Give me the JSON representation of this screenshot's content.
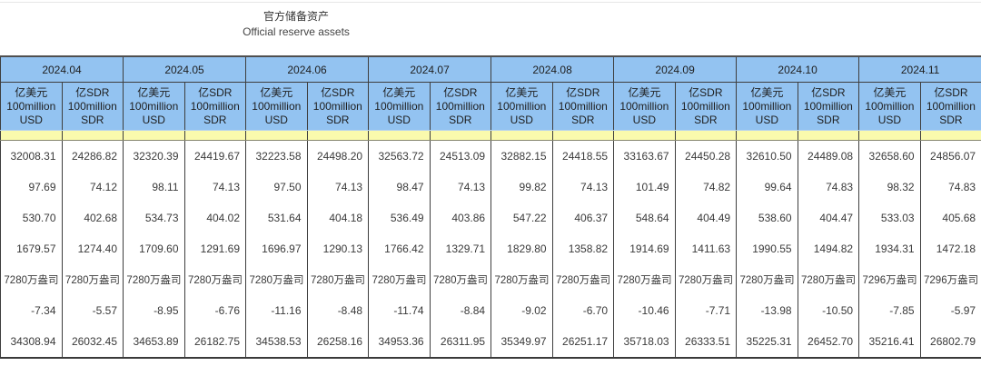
{
  "page": {
    "title_zh": "官方储备资产",
    "title_en": "Official reserve assets"
  },
  "colors": {
    "header_blue": "#93c3f1",
    "spacer_yellow": "#fafaad",
    "grid_line": "#3e3e3e"
  },
  "table": {
    "months": [
      "2024.04",
      "2024.05",
      "2024.06",
      "2024.07",
      "2024.08",
      "2024.09",
      "2024.10",
      "2024.11"
    ],
    "units": [
      {
        "line1": "亿美元",
        "line2": "100million",
        "line3": "USD"
      },
      {
        "line1": "亿SDR",
        "line2": "100million",
        "line3": "SDR"
      }
    ],
    "rows": [
      {
        "values": [
          "32008.31",
          "24286.82",
          "32320.39",
          "24419.67",
          "32223.58",
          "24498.20",
          "32563.72",
          "24513.09",
          "32882.15",
          "24418.55",
          "33163.67",
          "24450.28",
          "32610.50",
          "24489.08",
          "32658.60",
          "24856.07"
        ]
      },
      {
        "values": [
          "97.69",
          "74.12",
          "98.11",
          "74.13",
          "97.50",
          "74.13",
          "98.47",
          "74.13",
          "99.82",
          "74.13",
          "101.49",
          "74.82",
          "99.64",
          "74.83",
          "98.32",
          "74.83"
        ]
      },
      {
        "values": [
          "530.70",
          "402.68",
          "534.73",
          "404.02",
          "531.64",
          "404.18",
          "536.49",
          "403.86",
          "547.22",
          "406.37",
          "548.64",
          "404.49",
          "538.60",
          "404.47",
          "533.03",
          "405.68"
        ]
      },
      {
        "values": [
          "1679.57",
          "1274.40",
          "1709.60",
          "1291.69",
          "1696.97",
          "1290.13",
          "1766.42",
          "1329.71",
          "1829.80",
          "1358.82",
          "1914.69",
          "1411.63",
          "1990.55",
          "1494.82",
          "1934.31",
          "1472.18"
        ]
      },
      {
        "values": [
          "7280万盎司",
          "7280万盎司",
          "7280万盎司",
          "7280万盎司",
          "7280万盎司",
          "7280万盎司",
          "7280万盎司",
          "7280万盎司",
          "7280万盎司",
          "7280万盎司",
          "7280万盎司",
          "7280万盎司",
          "7280万盎司",
          "7280万盎司",
          "7296万盎司",
          "7296万盎司"
        ]
      },
      {
        "values": [
          "-7.34",
          "-5.57",
          "-8.95",
          "-6.76",
          "-11.16",
          "-8.48",
          "-11.74",
          "-8.84",
          "-9.02",
          "-6.70",
          "-10.46",
          "-7.71",
          "-13.98",
          "-10.50",
          "-7.85",
          "-5.97"
        ]
      },
      {
        "values": [
          "34308.94",
          "26032.45",
          "34653.89",
          "26182.75",
          "34538.53",
          "26258.16",
          "34953.36",
          "26311.95",
          "35349.97",
          "26251.17",
          "35718.03",
          "26333.51",
          "35225.31",
          "26452.70",
          "35216.41",
          "26802.79"
        ]
      }
    ]
  }
}
